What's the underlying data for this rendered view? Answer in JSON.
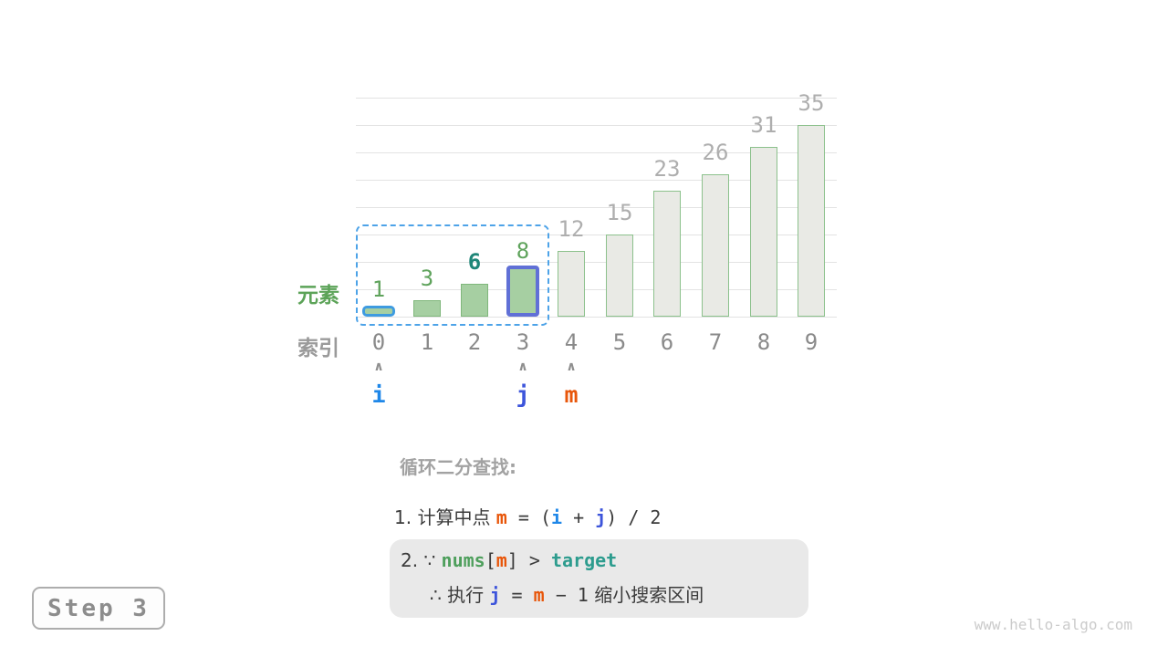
{
  "chart_data": {
    "type": "bar",
    "title": "",
    "categories": [
      "0",
      "1",
      "2",
      "3",
      "4",
      "5",
      "6",
      "7",
      "8",
      "9"
    ],
    "values": [
      1,
      3,
      6,
      8,
      12,
      15,
      23,
      26,
      31,
      35
    ],
    "ylim": [
      0,
      40
    ],
    "gridline_step": 5,
    "grid": true,
    "row_labels": {
      "element": "元素",
      "index": "索引"
    },
    "highlight": {
      "search_range": [
        0,
        3
      ],
      "i_index": 0,
      "j_index": 3,
      "m_index": 4,
      "target_value_index": 2
    }
  },
  "pointers": [
    {
      "label": "i",
      "index": 0,
      "color": "#1f87e8"
    },
    {
      "label": "j",
      "index": 3,
      "color": "#3d55db"
    },
    {
      "label": "m",
      "index": 4,
      "color": "#e8560a"
    }
  ],
  "icons": {
    "pointer_arrow": "∧"
  },
  "annotation": {
    "title": "循环二分查找:",
    "step1": [
      {
        "t": "1. 计算中点 ",
        "c": "text"
      },
      {
        "t": "m",
        "c": "m"
      },
      {
        "t": " = (",
        "c": "code"
      },
      {
        "t": "i",
        "c": "i"
      },
      {
        "t": " + ",
        "c": "code"
      },
      {
        "t": "j",
        "c": "j"
      },
      {
        "t": ") / 2",
        "c": "code"
      }
    ],
    "step2_line1": [
      {
        "t": "2. ∵ ",
        "c": "text"
      },
      {
        "t": "nums",
        "c": "nums"
      },
      {
        "t": "[",
        "c": "code"
      },
      {
        "t": "m",
        "c": "m"
      },
      {
        "t": "] > ",
        "c": "code"
      },
      {
        "t": "target",
        "c": "target"
      }
    ],
    "step2_line2": [
      {
        "t": "∴ 执行 ",
        "c": "text"
      },
      {
        "t": "j",
        "c": "j"
      },
      {
        "t": " = ",
        "c": "code"
      },
      {
        "t": "m",
        "c": "m"
      },
      {
        "t": " − 1",
        "c": "code"
      },
      {
        "t": " 缩小搜索区间",
        "c": "text"
      }
    ]
  },
  "step_badge": "Step 3",
  "footer": "www.hello-algo.com",
  "colors": {
    "bar-green": "#a6cfa2",
    "bar-green-border": "#7fb77b",
    "bar-gray": "#e9eae5",
    "bar-gray-border": "#8cc18c",
    "val-green": "#5fa35c",
    "val-target": "#1f8678",
    "val-gray": "#aeaeae",
    "idx-gray": "#8a8a8a",
    "el-green": "#5ca358",
    "row-gray": "#9a9a9a",
    "i-blue": "#1f87e8",
    "i-rect": "#3e9be0",
    "j-blue": "#3d55db",
    "j-rect": "#6070d6",
    "m-orange": "#e8560a",
    "range-blue": "#4da3e8",
    "grid": "#e3e3e3",
    "caret": "#8f8f8f",
    "title-gray": "#a2a2a2",
    "text-dark": "#3b3b3b",
    "nums-green": "#4e9f5c",
    "target-teal": "#2d9c8e",
    "box-bg": "#e9e9e9",
    "badge-border": "#adadad",
    "badge-text": "#8d8d8d",
    "footer": "#cbcbcb"
  }
}
